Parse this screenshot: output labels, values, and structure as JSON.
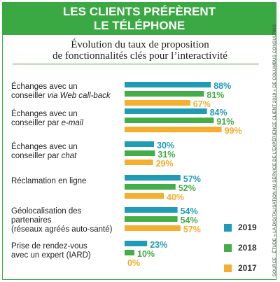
{
  "header": {
    "title_line1": "LES CLIENTS PRÉFÈRENT",
    "title_line2": "LE TÉLÉPHONE"
  },
  "subtitle": {
    "line1": "Évolution du taux de proposition",
    "line2": "de fonctionnalités clés pour l’interactivité"
  },
  "categories_display": [
    {
      "line1": "Échanges avec un",
      "line2_plain": "conseiller ",
      "line2_italic": "via Web call-back"
    },
    {
      "line1": "Échanges avec un",
      "line2_plain": "conseiller par ",
      "line2_italic": "e-mail"
    },
    {
      "line1": "Échanges avec un",
      "line2_plain": "conseiller par ",
      "line2_italic": "chat"
    },
    {
      "line1": "Réclamation en ligne",
      "line2_plain": "",
      "line2_italic": ""
    },
    {
      "line1": "Géolocalisation des partenaires",
      "line2_plain": "(réseaux agréés auto-santé)",
      "line2_italic": ""
    },
    {
      "line1": "Prise de rendez-vous",
      "line2_plain": "avec un expert (IARD)",
      "line2_italic": ""
    }
  ],
  "source": "SOURCE : ÉTUDE « LA DIGITALISATION AU SERVICE DE L’EXPÉRIENCE CLIENT 2019 » DE COLUMBUS CONSULTING",
  "colors": {
    "brand_green": "#3aa843",
    "s2019": "#1f9bb5",
    "s2018": "#44ad48",
    "s2017": "#f5ae2e"
  },
  "chart_data": {
    "type": "bar",
    "orientation": "horizontal",
    "categories": [
      "Échanges avec un conseiller via Web call-back",
      "Échanges avec un conseiller par e-mail",
      "Échanges avec un conseiller par chat",
      "Réclamation en ligne",
      "Géolocalisation des partenaires (réseaux agréés auto-santé)",
      "Prise de rendez-vous avec un expert (IARD)"
    ],
    "series": [
      {
        "name": "2019",
        "values": [
          88,
          84,
          30,
          57,
          54,
          23
        ],
        "labels": [
          "88%",
          "84%",
          "30%",
          "57%",
          "54%",
          "23%"
        ]
      },
      {
        "name": "2018",
        "values": [
          81,
          91,
          31,
          52,
          54,
          10
        ],
        "labels": [
          "81%",
          "91%",
          "31%",
          "52%",
          "54%",
          "10%"
        ]
      },
      {
        "name": "2017",
        "values": [
          67,
          99,
          29,
          40,
          57,
          0
        ],
        "labels": [
          "67%",
          "99%",
          "29%",
          "40%",
          "57%",
          "0%"
        ]
      }
    ],
    "xlim": [
      0,
      100
    ],
    "grid": false,
    "legend_position": "bottom-right"
  }
}
